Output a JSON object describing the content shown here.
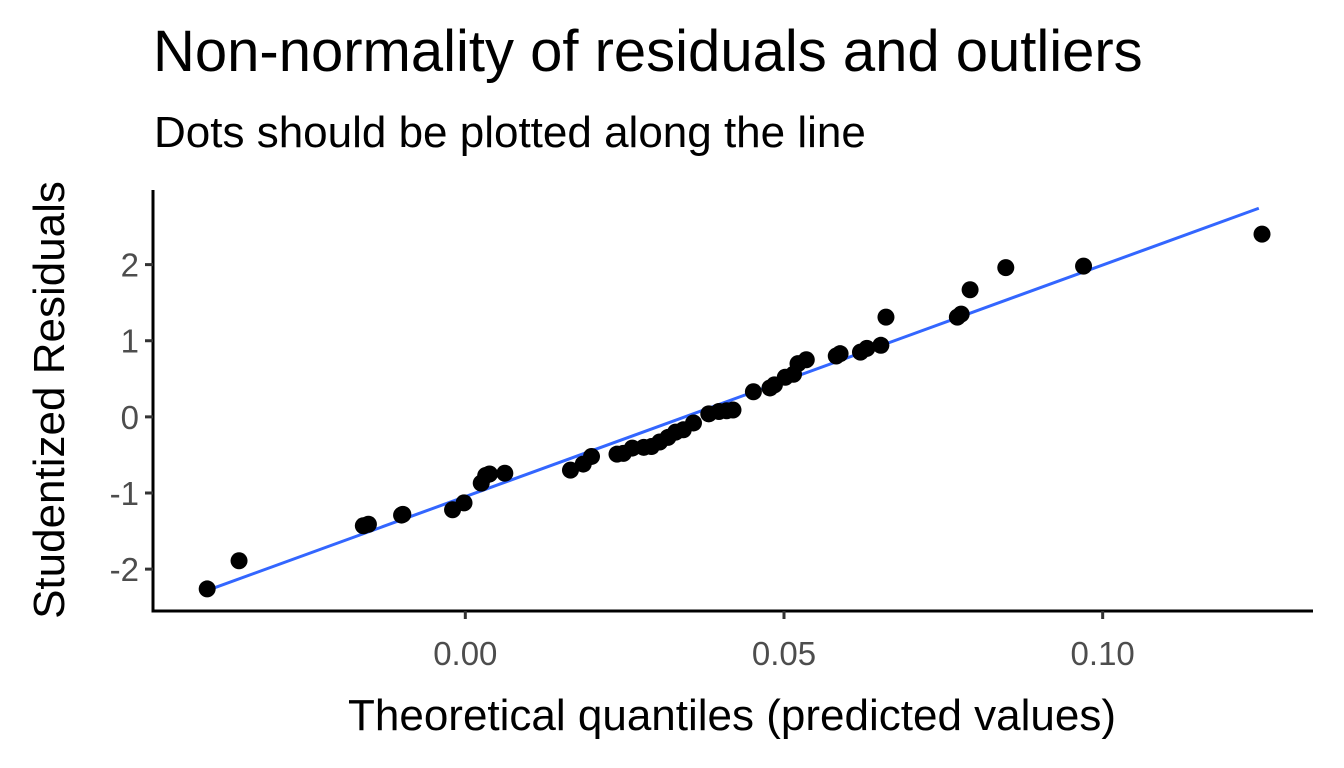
{
  "chart_data": {
    "type": "scatter",
    "title": "Non-normality of residuals and outliers",
    "subtitle": "Dots should be plotted along the line",
    "xlabel": "Theoretical quantiles (predicted values)",
    "ylabel": "Studentized Residuals",
    "xlim": [
      -0.049,
      0.133
    ],
    "ylim": [
      -2.55,
      2.98
    ],
    "x_ticks": [
      0.0,
      0.05,
      0.1
    ],
    "x_tick_labels": [
      "0.00",
      "0.05",
      "0.10"
    ],
    "y_ticks": [
      -2,
      -1,
      0,
      1,
      2
    ],
    "y_tick_labels": [
      "-2",
      "-1",
      "0",
      "1",
      "2"
    ],
    "grid": false,
    "colors": {
      "points": "#000000",
      "line": "#3366FF",
      "axis": "#000000",
      "tick_text": "#4D4D4D"
    },
    "reference_line": {
      "x": [
        -0.0405,
        0.1245
      ],
      "y": [
        -2.28,
        2.74
      ]
    },
    "points": [
      {
        "x": -0.0405,
        "y": -2.26
      },
      {
        "x": -0.0355,
        "y": -1.89
      },
      {
        "x": -0.016,
        "y": -1.43
      },
      {
        "x": -0.0152,
        "y": -1.41
      },
      {
        "x": -0.01,
        "y": -1.29
      },
      {
        "x": -0.0098,
        "y": -1.28
      },
      {
        "x": -0.002,
        "y": -1.22
      },
      {
        "x": -0.0002,
        "y": -1.13
      },
      {
        "x": 0.0025,
        "y": -0.87
      },
      {
        "x": 0.0032,
        "y": -0.77
      },
      {
        "x": 0.0038,
        "y": -0.75
      },
      {
        "x": 0.0062,
        "y": -0.74
      },
      {
        "x": 0.0165,
        "y": -0.7
      },
      {
        "x": 0.0185,
        "y": -0.62
      },
      {
        "x": 0.0198,
        "y": -0.52
      },
      {
        "x": 0.0238,
        "y": -0.49
      },
      {
        "x": 0.0248,
        "y": -0.48
      },
      {
        "x": 0.0262,
        "y": -0.41
      },
      {
        "x": 0.028,
        "y": -0.4
      },
      {
        "x": 0.0292,
        "y": -0.39
      },
      {
        "x": 0.0305,
        "y": -0.33
      },
      {
        "x": 0.0318,
        "y": -0.27
      },
      {
        "x": 0.033,
        "y": -0.2
      },
      {
        "x": 0.0342,
        "y": -0.17
      },
      {
        "x": 0.0358,
        "y": -0.08
      },
      {
        "x": 0.0382,
        "y": 0.04
      },
      {
        "x": 0.0398,
        "y": 0.07
      },
      {
        "x": 0.041,
        "y": 0.08
      },
      {
        "x": 0.042,
        "y": 0.09
      },
      {
        "x": 0.0452,
        "y": 0.33
      },
      {
        "x": 0.0478,
        "y": 0.38
      },
      {
        "x": 0.0485,
        "y": 0.42
      },
      {
        "x": 0.0502,
        "y": 0.52
      },
      {
        "x": 0.0515,
        "y": 0.56
      },
      {
        "x": 0.0522,
        "y": 0.7
      },
      {
        "x": 0.0535,
        "y": 0.75
      },
      {
        "x": 0.0582,
        "y": 0.8
      },
      {
        "x": 0.0588,
        "y": 0.83
      },
      {
        "x": 0.062,
        "y": 0.85
      },
      {
        "x": 0.063,
        "y": 0.9
      },
      {
        "x": 0.0652,
        "y": 0.94
      },
      {
        "x": 0.066,
        "y": 1.31
      },
      {
        "x": 0.0772,
        "y": 1.31
      },
      {
        "x": 0.0778,
        "y": 1.35
      },
      {
        "x": 0.0792,
        "y": 1.67
      },
      {
        "x": 0.0848,
        "y": 1.96
      },
      {
        "x": 0.097,
        "y": 1.98
      },
      {
        "x": 0.125,
        "y": 2.4
      }
    ]
  }
}
